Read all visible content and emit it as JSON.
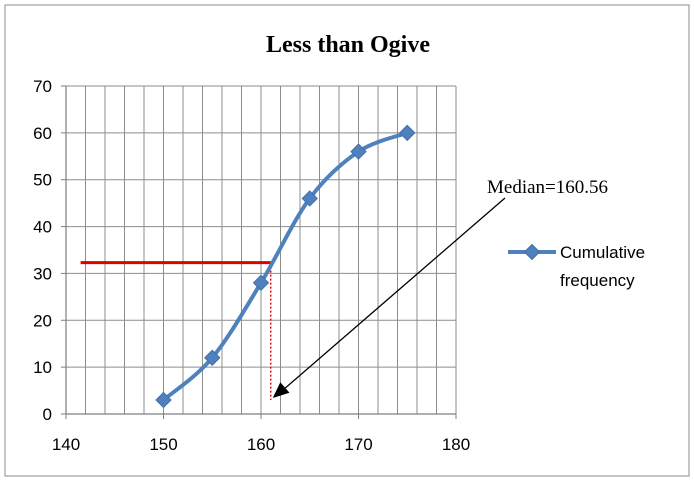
{
  "chart_data": {
    "type": "line",
    "title": "Less than Ogive",
    "xlabel": "",
    "ylabel": "",
    "xlim": [
      140,
      180
    ],
    "ylim": [
      0,
      70
    ],
    "xticks": [
      140,
      150,
      160,
      170,
      180
    ],
    "yticks": [
      0,
      10,
      20,
      30,
      40,
      50,
      60,
      70
    ],
    "grid": true,
    "legend_position": "right",
    "series": [
      {
        "name": "Cumulative frequency",
        "x": [
          150,
          155,
          160,
          165,
          170,
          175
        ],
        "y": [
          3,
          12,
          28,
          46,
          56,
          60
        ],
        "color": "#4F81BD",
        "marker": "diamond"
      }
    ],
    "median_line": {
      "y": 32.3,
      "x_start": 141.5,
      "x_end": 161,
      "color": "#E00000"
    },
    "median_drop": {
      "x": 161,
      "y_top": 32.3,
      "y_bottom": 3,
      "color": "#E00000"
    },
    "annotation": {
      "text": "Median=160.56",
      "arrow_from": [
        184.5,
        48
      ],
      "arrow_to": [
        161,
        3
      ]
    }
  }
}
